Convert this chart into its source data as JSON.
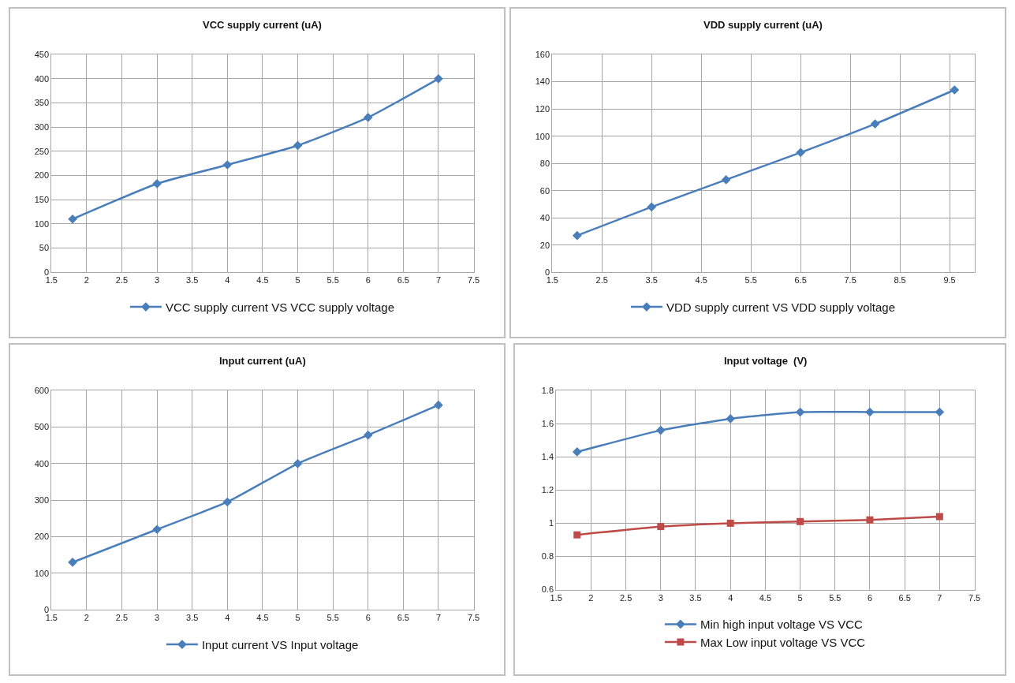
{
  "chart_data": [
    {
      "type": "line",
      "title": "VCC supply current (uA)",
      "x": [
        1.8,
        3,
        4,
        5,
        6,
        7
      ],
      "series": [
        {
          "name": "VCC supply current VS VCC supply voltage",
          "color": "#4a7ebb",
          "values": [
            110,
            183,
            222,
            262,
            320,
            400
          ]
        }
      ],
      "xlim": [
        1.5,
        7.5
      ],
      "xticks": [
        1.5,
        2,
        2.5,
        3,
        3.5,
        4,
        4.5,
        5,
        5.5,
        6,
        6.5,
        7,
        7.5
      ],
      "ylim": [
        0,
        450
      ],
      "yticks": [
        0,
        50,
        100,
        150,
        200,
        250,
        300,
        350,
        400,
        450
      ],
      "grid": true,
      "legend": "bottom",
      "marker": "diamond"
    },
    {
      "type": "line",
      "title": "VDD supply current (uA)",
      "x": [
        2,
        3.5,
        5,
        6.5,
        8,
        9.6
      ],
      "series": [
        {
          "name": "VDD supply current VS VDD supply voltage",
          "color": "#4a7ebb",
          "values": [
            27,
            48,
            68,
            88,
            109,
            134
          ]
        }
      ],
      "xlim": [
        1.5,
        10
      ],
      "xticks": [
        1.5,
        2.5,
        3.5,
        4.5,
        5.5,
        6.5,
        7.5,
        8.5,
        9.5
      ],
      "ylim": [
        0,
        160
      ],
      "yticks": [
        0,
        20,
        40,
        60,
        80,
        100,
        120,
        140,
        160
      ],
      "grid": true,
      "legend": "bottom",
      "marker": "diamond"
    },
    {
      "type": "line",
      "title": "Input current (uA)",
      "x": [
        1.8,
        3,
        4,
        5,
        6,
        7
      ],
      "series": [
        {
          "name": "Input current VS Input voltage",
          "color": "#4a7ebb",
          "values": [
            130,
            220,
            295,
            400,
            478,
            560
          ]
        }
      ],
      "xlim": [
        1.5,
        7.5
      ],
      "xticks": [
        1.5,
        2,
        2.5,
        3,
        3.5,
        4,
        4.5,
        5,
        5.5,
        6,
        6.5,
        7,
        7.5
      ],
      "ylim": [
        0,
        600
      ],
      "yticks": [
        0,
        100,
        200,
        300,
        400,
        500,
        600
      ],
      "grid": true,
      "legend": "bottom",
      "marker": "diamond"
    },
    {
      "type": "line",
      "title": "Input voltage  (V)",
      "x": [
        1.8,
        3,
        4,
        5,
        6,
        7
      ],
      "series": [
        {
          "name": "Min high input voltage VS VCC",
          "color": "#4a7ebb",
          "values": [
            1.43,
            1.56,
            1.63,
            1.67,
            1.67,
            1.67
          ],
          "marker": "diamond"
        },
        {
          "name": "Max Low input voltage VS VCC",
          "color": "#be4b48",
          "values": [
            0.93,
            0.98,
            1.0,
            1.01,
            1.02,
            1.04
          ],
          "marker": "square"
        }
      ],
      "xlim": [
        1.5,
        7.5
      ],
      "xticks": [
        1.5,
        2,
        2.5,
        3,
        3.5,
        4,
        4.5,
        5,
        5.5,
        6,
        6.5,
        7,
        7.5
      ],
      "ylim": [
        0.6,
        1.8
      ],
      "yticks": [
        0.6,
        0.8,
        1,
        1.2,
        1.4,
        1.6,
        1.8
      ],
      "grid": true,
      "legend": "bottom",
      "marker": "diamond"
    }
  ]
}
